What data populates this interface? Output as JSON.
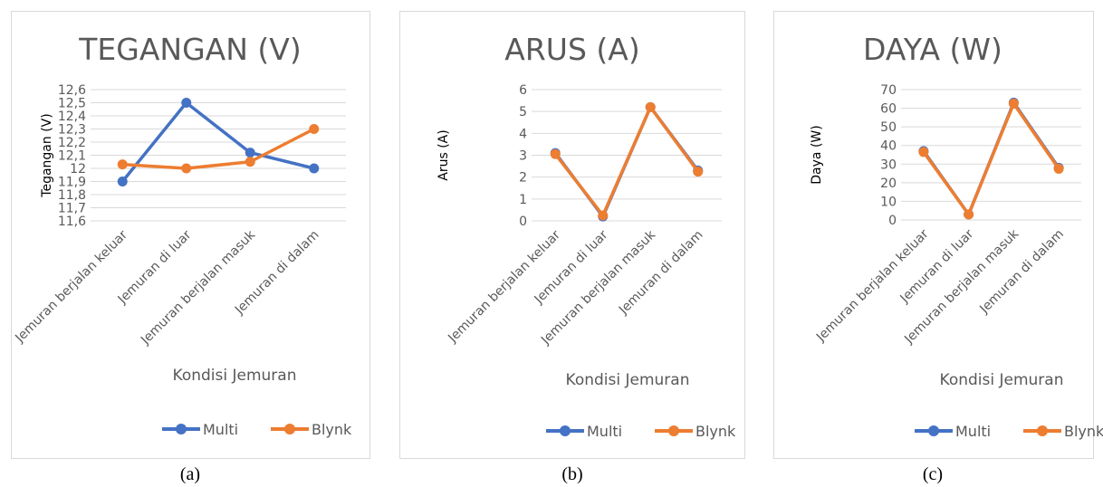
{
  "colors": {
    "multi": "#4472C4",
    "blynk": "#ED7D31",
    "grid": "#d9d9d9",
    "text": "#595959",
    "border": "#d9d9d9"
  },
  "chart_data": [
    {
      "type": "line",
      "title": "TEGANGAN (V)",
      "xlabel": "Kondisi Jemuran",
      "ylabel": "Tegangan (V)",
      "caption": "(a)",
      "categories": [
        "Jemuran berjalan keluar",
        "Jemuran di luar",
        "Jemuran berjalan masuk",
        "Jemuran di dalam"
      ],
      "ylim": [
        11.6,
        12.6
      ],
      "yticks": [
        "11,6",
        "11,7",
        "11,8",
        "11,9",
        "12",
        "12,1",
        "12,2",
        "12,3",
        "12,4",
        "12,5",
        "12,6"
      ],
      "grid": true,
      "legend": "bottom",
      "series": [
        {
          "name": "Multi",
          "values": [
            11.9,
            12.5,
            12.12,
            12.0
          ]
        },
        {
          "name": "Blynk",
          "values": [
            12.03,
            12.0,
            12.05,
            12.3
          ]
        }
      ]
    },
    {
      "type": "line",
      "title": "ARUS (A)",
      "xlabel": "Kondisi Jemuran",
      "ylabel": "Arus (A)",
      "caption": "(b)",
      "categories": [
        "Jemuran berjalan keluar",
        "Jemuran di luar",
        "Jemuran berjalan masuk",
        "Jemuran di dalam"
      ],
      "ylim": [
        0,
        6
      ],
      "yticks": [
        "0",
        "1",
        "2",
        "3",
        "4",
        "5",
        "6"
      ],
      "grid": true,
      "legend": "bottom",
      "series": [
        {
          "name": "Multi",
          "values": [
            3.1,
            0.2,
            5.2,
            2.3
          ]
        },
        {
          "name": "Blynk",
          "values": [
            3.05,
            0.25,
            5.2,
            2.25
          ]
        }
      ]
    },
    {
      "type": "line",
      "title": "DAYA (W)",
      "xlabel": "Kondisi Jemuran",
      "ylabel": "Daya (W)",
      "caption": "(c)",
      "categories": [
        "Jemuran berjalan keluar",
        "Jemuran di luar",
        "Jemuran berjalan masuk",
        "Jemuran di dalam"
      ],
      "ylim": [
        0,
        70
      ],
      "yticks": [
        "0",
        "10",
        "20",
        "30",
        "40",
        "50",
        "60",
        "70"
      ],
      "grid": true,
      "legend": "bottom",
      "series": [
        {
          "name": "Multi",
          "values": [
            37,
            3,
            63,
            28
          ]
        },
        {
          "name": "Blynk",
          "values": [
            36.5,
            3,
            62.5,
            27.5
          ]
        }
      ]
    }
  ]
}
